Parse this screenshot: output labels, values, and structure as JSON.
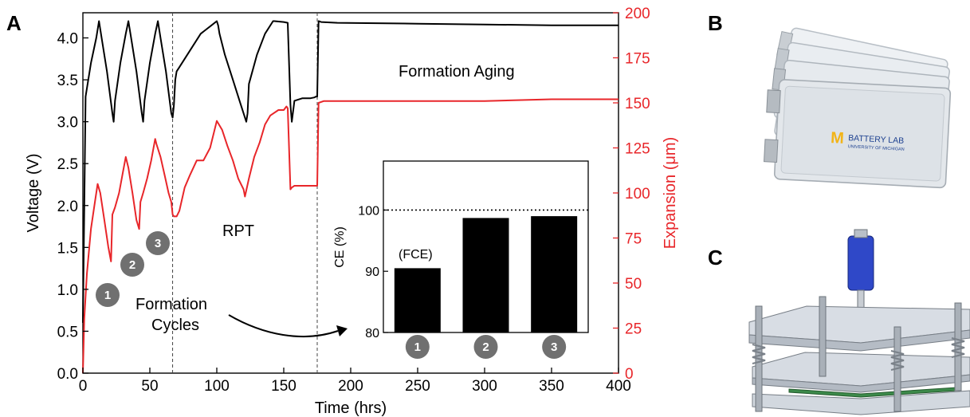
{
  "panels": {
    "a": "A",
    "b": "B",
    "c": "C"
  },
  "colors": {
    "voltage": "#000000",
    "expansion": "#e8262a",
    "step_circle": "#707070",
    "bar": "#000000"
  },
  "chart_data": [
    {
      "type": "line",
      "xlabel": "Time (hrs)",
      "ylabel": "Voltage (V)",
      "y2label": "Expansion (μm)",
      "xlim": [
        0,
        400
      ],
      "ylim": [
        0,
        4.3
      ],
      "y2lim": [
        0,
        200
      ],
      "x_ticks": [
        0,
        50,
        100,
        150,
        200,
        250,
        300,
        350,
        400
      ],
      "y_ticks": [
        0.0,
        0.5,
        1.0,
        1.5,
        2.0,
        2.5,
        3.0,
        3.5,
        4.0
      ],
      "y2_ticks": [
        0,
        25,
        50,
        75,
        100,
        125,
        150,
        175,
        200
      ],
      "x_tick_labels": [
        "0",
        "50",
        "100",
        "150",
        "200",
        "250",
        "300",
        "350",
        "400"
      ],
      "y_tick_labels": [
        "0.0",
        "0.5",
        "1.0",
        "1.5",
        "2.0",
        "2.5",
        "3.0",
        "3.5",
        "4.0"
      ],
      "y2_tick_labels": [
        "0",
        "25",
        "50",
        "75",
        "100",
        "125",
        "150",
        "175",
        "200"
      ],
      "vlines": [
        67,
        175
      ],
      "series": [
        {
          "axis": "left",
          "color": "#000000",
          "x": [
            0,
            2,
            6,
            10,
            12,
            14,
            18,
            22,
            23,
            24,
            28,
            32,
            34,
            36,
            40,
            44,
            45,
            46,
            50,
            54,
            56,
            58,
            62,
            66,
            67,
            68,
            69,
            70,
            72,
            76,
            80,
            84,
            88,
            92,
            96,
            100,
            101,
            102,
            106,
            112,
            118,
            122,
            123,
            124,
            130,
            136,
            142,
            143,
            150,
            153,
            155,
            156,
            158,
            164,
            170,
            173,
            174,
            175,
            176,
            178,
            190,
            250,
            300,
            350,
            400
          ],
          "y": [
            0.6,
            3.3,
            3.7,
            4.0,
            4.2,
            4.0,
            3.6,
            3.1,
            3.0,
            3.25,
            3.7,
            4.05,
            4.2,
            4.0,
            3.6,
            3.1,
            3.0,
            3.25,
            3.7,
            4.05,
            4.2,
            4.0,
            3.6,
            3.1,
            3.05,
            3.2,
            3.5,
            3.6,
            3.65,
            3.75,
            3.85,
            3.95,
            4.05,
            4.1,
            4.15,
            4.2,
            4.15,
            4.05,
            3.8,
            3.5,
            3.2,
            3.0,
            3.1,
            3.45,
            3.8,
            4.05,
            4.2,
            4.2,
            4.19,
            4.18,
            3.2,
            3.0,
            3.25,
            3.28,
            3.28,
            3.29,
            3.3,
            3.3,
            4.2,
            4.19,
            4.18,
            4.17,
            4.16,
            4.15,
            4.15
          ]
        },
        {
          "axis": "right",
          "color": "#e8262a",
          "x": [
            0,
            1,
            3,
            6,
            9,
            11,
            13,
            16,
            19,
            21,
            22,
            24,
            27,
            30,
            32,
            34,
            37,
            40,
            42,
            43,
            45,
            48,
            51,
            54,
            55,
            58,
            61,
            64,
            66,
            67,
            68,
            70,
            72,
            76,
            80,
            85,
            90,
            95,
            100,
            104,
            108,
            112,
            116,
            120,
            121,
            124,
            128,
            132,
            136,
            140,
            146,
            150,
            152,
            153,
            155,
            156,
            158,
            165,
            172,
            174,
            175,
            176,
            180,
            200,
            250,
            300,
            350,
            400
          ],
          "y": [
            0,
            30,
            55,
            80,
            95,
            105,
            100,
            85,
            70,
            62,
            88,
            92,
            100,
            112,
            120,
            114,
            100,
            85,
            80,
            95,
            100,
            108,
            118,
            130,
            127,
            120,
            110,
            100,
            95,
            88,
            87,
            87,
            90,
            103,
            110,
            118,
            118,
            125,
            140,
            135,
            126,
            118,
            108,
            102,
            98,
            108,
            120,
            128,
            138,
            143,
            146,
            146,
            148,
            147,
            102,
            103,
            104,
            104,
            104,
            104,
            104,
            150,
            151,
            151,
            151,
            151,
            152,
            152
          ]
        }
      ],
      "annotations": {
        "formation_aging": "Formation Aging",
        "rpt": "RPT",
        "formation_cycles_1": "Formation",
        "formation_cycles_2": "Cycles",
        "steps": [
          "1",
          "2",
          "3"
        ]
      }
    },
    {
      "type": "bar",
      "ylabel": "CE (%)",
      "categories": [
        "1",
        "2",
        "3"
      ],
      "values": [
        90.5,
        98.7,
        99.0
      ],
      "ylim": [
        80,
        108
      ],
      "y_ticks": [
        80,
        90,
        100
      ],
      "y_tick_labels": [
        "80",
        "90",
        "100"
      ],
      "reference_line": 100,
      "bar_annotation": "(FCE)"
    }
  ],
  "pouch_image": {
    "logo_m": "M",
    "logo_text": "BATTERY LAB",
    "logo_sub": "UNIVERSITY OF MICHIGAN"
  }
}
